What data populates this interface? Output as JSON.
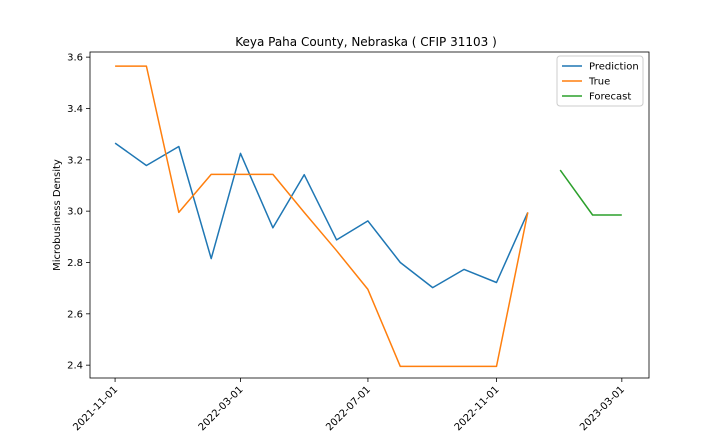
{
  "chart_data": {
    "type": "line",
    "title": "Keya Paha County, Nebraska ( CFIP 31103 )",
    "xlabel": "",
    "ylabel": "Microbusiness Density",
    "x_ticks": [
      "2021-11-01",
      "2022-03-01",
      "2022-07-01",
      "2022-11-01",
      "2023-03-01"
    ],
    "y_ticks": [
      "2.4",
      "2.6",
      "2.8",
      "3.0",
      "3.2",
      "3.4",
      "3.6"
    ],
    "ylim": [
      2.35,
      3.62
    ],
    "xlim": [
      "2021-10-08",
      "2023-03-27"
    ],
    "grid": false,
    "legend_position": "top-right",
    "series": [
      {
        "name": "Prediction",
        "color": "#1f77b4",
        "x": [
          "2021-11-01",
          "2021-12-01",
          "2022-01-01",
          "2022-02-01",
          "2022-03-01",
          "2022-04-01",
          "2022-05-01",
          "2022-06-01",
          "2022-07-01",
          "2022-08-01",
          "2022-09-01",
          "2022-10-01",
          "2022-11-01",
          "2022-12-01"
        ],
        "y": [
          3.265,
          3.178,
          3.252,
          2.815,
          3.225,
          2.935,
          3.142,
          2.888,
          2.962,
          2.8,
          2.702,
          2.773,
          2.722,
          2.995
        ]
      },
      {
        "name": "True",
        "color": "#ff7f0e",
        "x": [
          "2021-11-01",
          "2021-12-01",
          "2022-01-01",
          "2022-02-01",
          "2022-03-01",
          "2022-04-01",
          "2022-05-01",
          "2022-06-01",
          "2022-07-01",
          "2022-08-01",
          "2022-09-01",
          "2022-10-01",
          "2022-11-01",
          "2022-12-01"
        ],
        "y": [
          3.565,
          3.565,
          2.995,
          3.143,
          3.143,
          3.143,
          2.995,
          2.846,
          2.695,
          2.395,
          2.395,
          2.395,
          2.395,
          2.995
        ]
      },
      {
        "name": "Forecast",
        "color": "#2ca02c",
        "x": [
          "2023-01-01",
          "2023-02-01",
          "2023-03-01"
        ],
        "y": [
          3.16,
          2.985,
          2.985
        ]
      }
    ]
  }
}
